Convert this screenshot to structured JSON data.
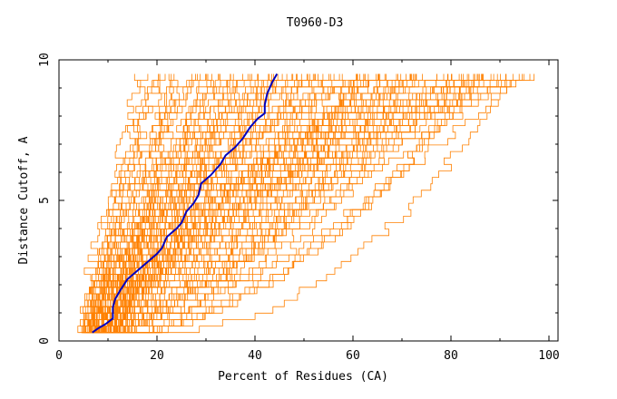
{
  "chart_data": {
    "type": "line",
    "title": "T0960-D3",
    "xlabel": "Percent of Residues (CA)",
    "ylabel": "Distance Cutoff, A",
    "xlim": [
      0,
      100
    ],
    "ylim": [
      0,
      10
    ],
    "xticks": [
      0,
      20,
      40,
      60,
      80,
      100
    ],
    "yticks": [
      0,
      5,
      10
    ],
    "x_tick_labels": [
      "0",
      "20",
      "40",
      "60",
      "80",
      "100"
    ],
    "y_tick_labels": [
      "0",
      "5",
      "10"
    ],
    "grid": false,
    "background_series": {
      "color": "#ff8000",
      "count": 120,
      "description_shape": "orange step curves from ~(5-12%,0.3A) rising to 9.5A at x between 16% and 100%",
      "min_x_at_top": 16,
      "max_x_at_top": 100,
      "y_top": 9.5,
      "y_bottom": 0.3
    },
    "highlight_series": {
      "name": "highlight",
      "color": "#0000c0",
      "points": [
        [
          6.8,
          0.3
        ],
        [
          8.0,
          0.45
        ],
        [
          9.5,
          0.6
        ],
        [
          11.0,
          0.8
        ],
        [
          11.0,
          1.2
        ],
        [
          11.5,
          1.5
        ],
        [
          12.5,
          1.8
        ],
        [
          14.0,
          2.2
        ],
        [
          16.0,
          2.5
        ],
        [
          18.0,
          2.8
        ],
        [
          20.0,
          3.1
        ],
        [
          21.0,
          3.3
        ],
        [
          22.0,
          3.7
        ],
        [
          24.0,
          4.0
        ],
        [
          25.0,
          4.2
        ],
        [
          26.0,
          4.6
        ],
        [
          27.5,
          4.9
        ],
        [
          28.5,
          5.2
        ],
        [
          29.0,
          5.6
        ],
        [
          31.0,
          5.9
        ],
        [
          33.0,
          6.3
        ],
        [
          34.0,
          6.6
        ],
        [
          36.0,
          6.9
        ],
        [
          37.5,
          7.2
        ],
        [
          39.0,
          7.6
        ],
        [
          40.5,
          7.9
        ],
        [
          42.0,
          8.1
        ],
        [
          42.0,
          8.4
        ],
        [
          42.5,
          8.8
        ],
        [
          43.0,
          9.0
        ],
        [
          43.5,
          9.2
        ],
        [
          44.5,
          9.5
        ]
      ]
    }
  }
}
